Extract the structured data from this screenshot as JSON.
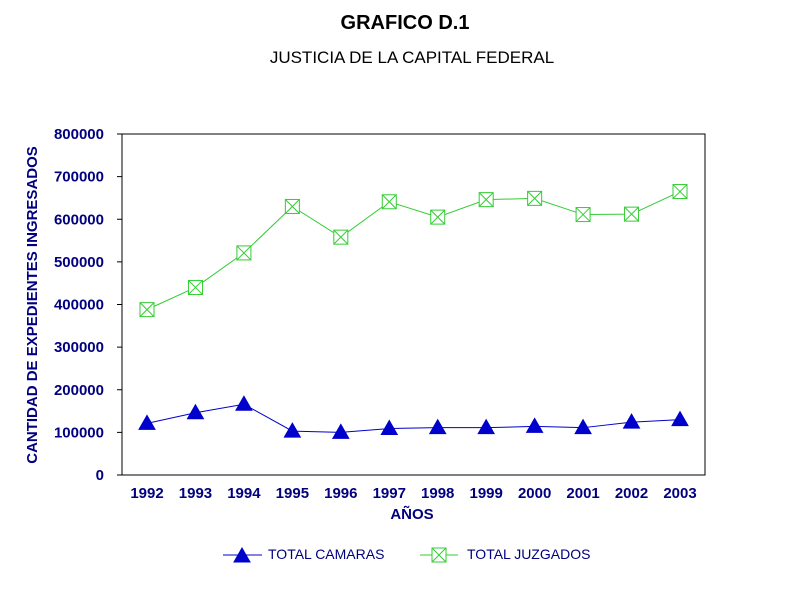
{
  "colors": {
    "camaras": "#0000CC",
    "juzgados": "#33CC33",
    "axis": "#000000",
    "text": "#000080"
  },
  "chart_data": {
    "type": "line",
    "title": "GRAFICO D.1",
    "subtitle": "JUSTICIA DE LA CAPITAL FEDERAL",
    "xlabel": "AÑOS",
    "ylabel": "CANTIDAD DE EXPEDIENTES INGRESADOS",
    "categories": [
      "1992",
      "1993",
      "1994",
      "1995",
      "1996",
      "1997",
      "1998",
      "1999",
      "2000",
      "2001",
      "2002",
      "2003"
    ],
    "yticks": [
      "0",
      "100000",
      "200000",
      "300000",
      "400000",
      "500000",
      "600000",
      "700000",
      "800000"
    ],
    "ylim": [
      0,
      800000
    ],
    "grid": false,
    "legend_position": "bottom",
    "series": [
      {
        "name": "TOTAL CAMARAS",
        "marker": "triangle",
        "values": [
          121000,
          146000,
          166000,
          103000,
          100000,
          109000,
          111000,
          111000,
          114000,
          111000,
          124000,
          130000
        ]
      },
      {
        "name": "TOTAL JUZGADOS",
        "marker": "boxed-x",
        "values": [
          388000,
          440000,
          521000,
          630000,
          558000,
          641000,
          605000,
          646000,
          649000,
          611000,
          612000,
          665000
        ]
      }
    ]
  }
}
